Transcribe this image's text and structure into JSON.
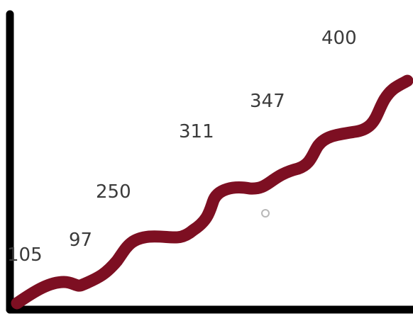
{
  "chart_data": {
    "type": "line",
    "title": "",
    "xlabel": "",
    "ylabel": "",
    "labels": [
      "105",
      "97",
      "250",
      "311",
      "347",
      "400"
    ],
    "values": [
      105,
      97,
      250,
      311,
      347,
      400
    ],
    "grid": false,
    "legend": "none",
    "colors": {
      "line": "#7d0f22",
      "axis": "#000000",
      "label": "#3b3b3b",
      "marker": "#b8b8b8"
    }
  }
}
